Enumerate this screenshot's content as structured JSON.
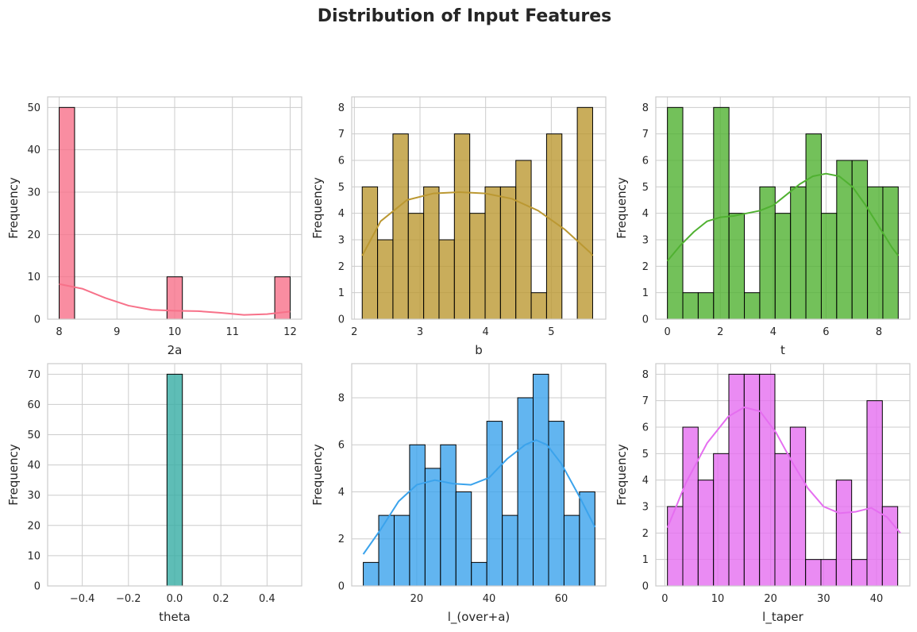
{
  "figure": {
    "title": "Distribution of Input Features"
  },
  "chart_data": [
    {
      "type": "histogram",
      "xlabel": "2a",
      "ylabel": "Frequency",
      "color": "#f77189",
      "xlim": [
        7.8,
        12.2
      ],
      "ylim": [
        0,
        52.5
      ],
      "xticks": [
        8,
        9,
        10,
        11,
        12
      ],
      "yticks": [
        0,
        10,
        20,
        30,
        40,
        50
      ],
      "bin_start": 8,
      "bin_width": 0.26667,
      "counts": [
        50,
        0,
        0,
        0,
        0,
        0,
        0,
        10,
        0,
        0,
        0,
        0,
        0,
        0,
        10
      ],
      "kde": [
        [
          8.0,
          8.3
        ],
        [
          8.4,
          7.2
        ],
        [
          8.8,
          5.0
        ],
        [
          9.2,
          3.2
        ],
        [
          9.6,
          2.2
        ],
        [
          10.0,
          2.0
        ],
        [
          10.4,
          1.9
        ],
        [
          10.8,
          1.5
        ],
        [
          11.2,
          1.0
        ],
        [
          11.6,
          1.2
        ],
        [
          12.0,
          1.8
        ]
      ],
      "grid": true
    },
    {
      "type": "histogram",
      "xlabel": "b",
      "ylabel": "Frequency",
      "color": "#bb9832",
      "xlim": [
        1.96,
        5.83
      ],
      "ylim": [
        0,
        8.4
      ],
      "xticks": [
        2,
        3,
        4,
        5
      ],
      "yticks": [
        0,
        1,
        2,
        3,
        4,
        5,
        6,
        7,
        8
      ],
      "bin_start": 2.12,
      "bin_width": 0.234,
      "counts": [
        5,
        3,
        7,
        4,
        5,
        3,
        7,
        4,
        5,
        5,
        6,
        1,
        7,
        0,
        8
      ],
      "kde": [
        [
          2.12,
          2.4
        ],
        [
          2.4,
          3.7
        ],
        [
          2.8,
          4.5
        ],
        [
          3.2,
          4.75
        ],
        [
          3.6,
          4.8
        ],
        [
          4.0,
          4.75
        ],
        [
          4.4,
          4.55
        ],
        [
          4.8,
          4.1
        ],
        [
          5.2,
          3.4
        ],
        [
          5.6,
          2.5
        ],
        [
          5.63,
          2.4
        ]
      ],
      "grid": true
    },
    {
      "type": "histogram",
      "xlabel": "t",
      "ylabel": "Frequency",
      "color": "#50b131",
      "xlim": [
        -0.44,
        9.17
      ],
      "ylim": [
        0,
        8.4
      ],
      "xticks": [
        0,
        2,
        4,
        6,
        8
      ],
      "yticks": [
        0,
        1,
        2,
        3,
        4,
        5,
        6,
        7,
        8
      ],
      "bin_start": 0,
      "bin_width": 0.582,
      "counts": [
        8,
        1,
        1,
        8,
        4,
        1,
        5,
        4,
        5,
        7,
        4,
        6,
        6,
        5,
        5
      ],
      "kde": [
        [
          0.0,
          2.2
        ],
        [
          0.5,
          2.8
        ],
        [
          1.0,
          3.3
        ],
        [
          1.5,
          3.7
        ],
        [
          2.0,
          3.85
        ],
        [
          2.5,
          3.9
        ],
        [
          3.0,
          4.0
        ],
        [
          3.5,
          4.1
        ],
        [
          4.0,
          4.3
        ],
        [
          4.5,
          4.7
        ],
        [
          5.0,
          5.1
        ],
        [
          5.5,
          5.4
        ],
        [
          6.0,
          5.5
        ],
        [
          6.5,
          5.4
        ],
        [
          7.0,
          5.0
        ],
        [
          7.5,
          4.3
        ],
        [
          8.0,
          3.5
        ],
        [
          8.5,
          2.7
        ],
        [
          8.73,
          2.4
        ]
      ],
      "grid": true
    },
    {
      "type": "histogram",
      "xlabel": "theta",
      "ylabel": "Frequency",
      "color": "#36ada4",
      "xlim": [
        -0.55,
        0.55
      ],
      "ylim": [
        0,
        73.5
      ],
      "xticks": [
        -0.4,
        -0.2,
        0.0,
        0.2,
        0.4
      ],
      "xtick_labels": [
        "−0.4",
        "−0.2",
        "0.0",
        "0.2",
        "0.4"
      ],
      "yticks": [
        0,
        10,
        20,
        30,
        40,
        50,
        60,
        70
      ],
      "bin_start": -0.0333,
      "bin_width": 0.0667,
      "counts": [
        70
      ],
      "kde": [],
      "grid": true
    },
    {
      "type": "histogram",
      "xlabel": "l_(over+a)",
      "ylabel": "Frequency",
      "color": "#3ba3ec",
      "xlim": [
        2.0,
        72.3
      ],
      "ylim": [
        0,
        9.45
      ],
      "xticks": [
        20,
        40,
        60
      ],
      "yticks": [
        0,
        2,
        4,
        6,
        8
      ],
      "bin_start": 5.2,
      "bin_width": 4.273,
      "counts": [
        1,
        3,
        3,
        6,
        5,
        6,
        4,
        1,
        7,
        3,
        8,
        9,
        7,
        3,
        4
      ],
      "kde": [
        [
          5.2,
          1.35
        ],
        [
          10,
          2.4
        ],
        [
          15,
          3.6
        ],
        [
          20,
          4.3
        ],
        [
          25,
          4.5
        ],
        [
          30,
          4.35
        ],
        [
          35,
          4.3
        ],
        [
          40,
          4.6
        ],
        [
          45,
          5.4
        ],
        [
          50,
          6.0
        ],
        [
          53,
          6.2
        ],
        [
          56,
          6.0
        ],
        [
          60,
          5.2
        ],
        [
          65,
          3.8
        ],
        [
          69.3,
          2.5
        ]
      ],
      "grid": true
    },
    {
      "type": "histogram",
      "xlabel": "l_taper",
      "ylabel": "Frequency",
      "color": "#e56ef0",
      "xlim": [
        -1.7,
        46.3
      ],
      "ylim": [
        0,
        8.4
      ],
      "xticks": [
        0,
        10,
        20,
        30,
        40
      ],
      "yticks": [
        0,
        1,
        2,
        3,
        4,
        5,
        6,
        7,
        8
      ],
      "bin_start": 0.5,
      "bin_width": 2.9,
      "counts": [
        3,
        6,
        4,
        5,
        8,
        8,
        8,
        5,
        6,
        1,
        1,
        4,
        1,
        7,
        3
      ],
      "kde": [
        [
          0.5,
          2.2
        ],
        [
          4,
          3.9
        ],
        [
          8,
          5.4
        ],
        [
          12,
          6.4
        ],
        [
          15,
          6.75
        ],
        [
          18,
          6.6
        ],
        [
          21,
          5.8
        ],
        [
          24,
          4.7
        ],
        [
          27,
          3.7
        ],
        [
          30,
          3.0
        ],
        [
          33,
          2.75
        ],
        [
          36,
          2.8
        ],
        [
          39,
          2.95
        ],
        [
          42,
          2.6
        ],
        [
          44.5,
          2.0
        ]
      ],
      "grid": true
    }
  ]
}
